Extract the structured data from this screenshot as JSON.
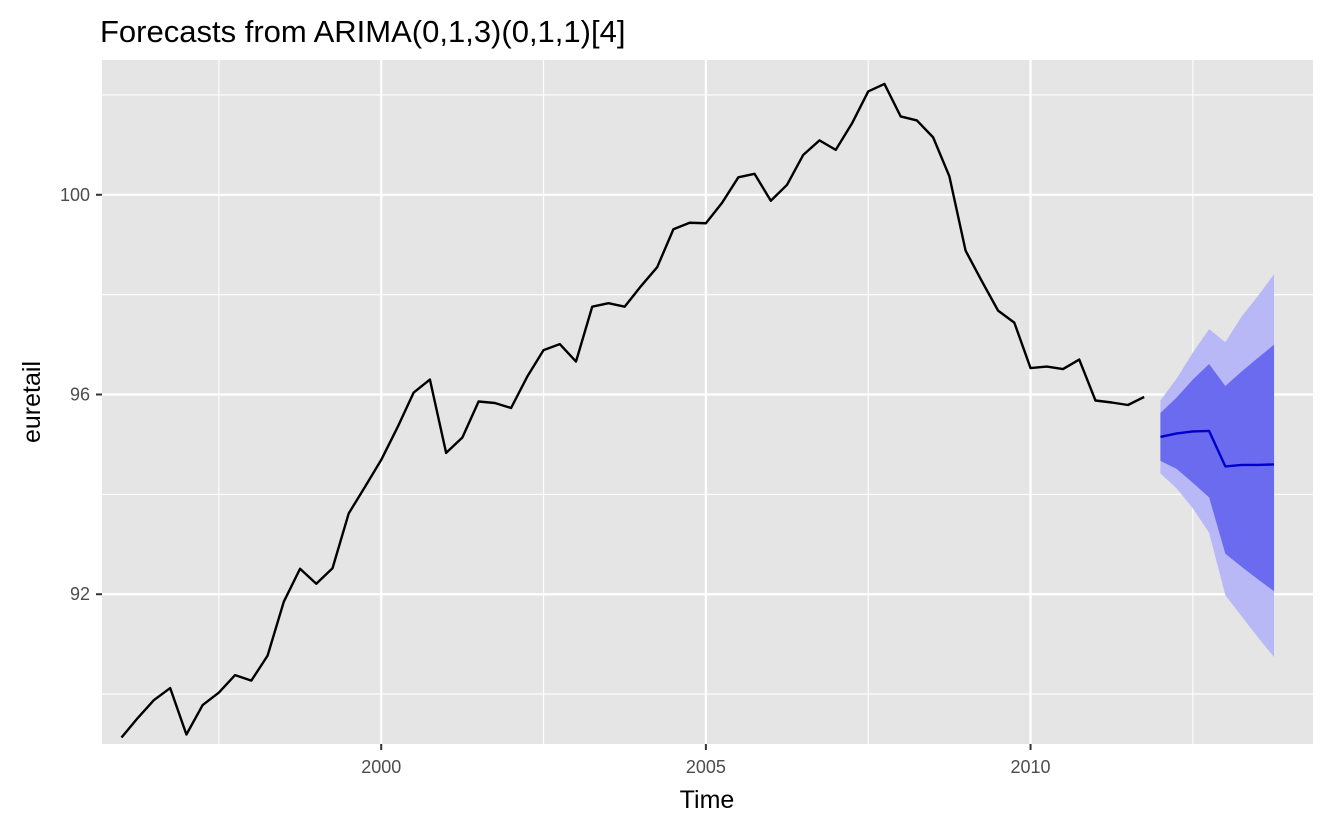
{
  "chart_data": {
    "type": "line",
    "title": "Forecasts from ARIMA(0,1,3)(0,1,1)[4]",
    "xlabel": "Time",
    "ylabel": "euretail",
    "xlim": [
      1995.7,
      2014.35
    ],
    "ylim": [
      89.0,
      102.7
    ],
    "x_major_ticks": [
      2000,
      2005,
      2010
    ],
    "x_tick_labels": [
      "2000",
      "2005",
      "2010"
    ],
    "x_minor_ticks": [
      1997.5,
      2002.5,
      2007.5,
      2012.5
    ],
    "y_major_ticks": [
      92,
      96,
      100
    ],
    "y_tick_labels": [
      "92",
      "96",
      "100"
    ],
    "y_minor_ticks": [
      90,
      94,
      98,
      102
    ],
    "grid": true,
    "legend": "none",
    "colors": {
      "panel": "#e5e5e5",
      "grid": "#ffffff",
      "series": "#000000",
      "forecast": "#0000cc",
      "band80": "#6b6bef",
      "band95": "#b8b8f6"
    },
    "series": [
      {
        "x_start": 1996.0,
        "frequency": 4,
        "values": [
          89.13,
          89.52,
          89.88,
          90.12,
          89.19,
          89.78,
          90.03,
          90.38,
          90.27,
          90.77,
          91.85,
          92.51,
          92.21,
          92.52,
          93.62,
          94.15,
          94.69,
          95.34,
          96.04,
          96.3,
          94.83,
          95.14,
          95.86,
          95.83,
          95.73,
          96.36,
          96.89,
          97.01,
          96.66,
          97.76,
          97.83,
          97.76,
          98.17,
          98.55,
          99.31,
          99.44,
          99.43,
          99.84,
          100.35,
          100.42,
          99.88,
          100.2,
          100.8,
          101.09,
          100.9,
          101.43,
          102.07,
          102.22,
          101.57,
          101.49,
          101.15,
          100.37,
          98.88,
          98.27,
          97.68,
          97.44,
          96.53,
          96.56,
          96.51,
          96.7,
          95.88,
          95.84,
          95.79,
          95.95
        ]
      }
    ],
    "forecast": {
      "x_start": 2012.0,
      "frequency": 4,
      "mean": [
        95.15,
        95.22,
        95.26,
        95.27,
        94.56,
        94.59,
        94.59,
        94.6
      ],
      "lo80": [
        94.67,
        94.51,
        94.23,
        93.94,
        92.81,
        92.55,
        92.3,
        92.06
      ],
      "hi80": [
        95.63,
        95.94,
        96.3,
        96.61,
        96.17,
        96.46,
        96.73,
        97.0
      ],
      "lo95": [
        94.42,
        94.12,
        93.72,
        93.23,
        91.98,
        91.56,
        91.14,
        90.74
      ],
      "hi95": [
        95.88,
        96.32,
        96.84,
        97.31,
        97.05,
        97.56,
        97.97,
        98.41
      ]
    }
  }
}
